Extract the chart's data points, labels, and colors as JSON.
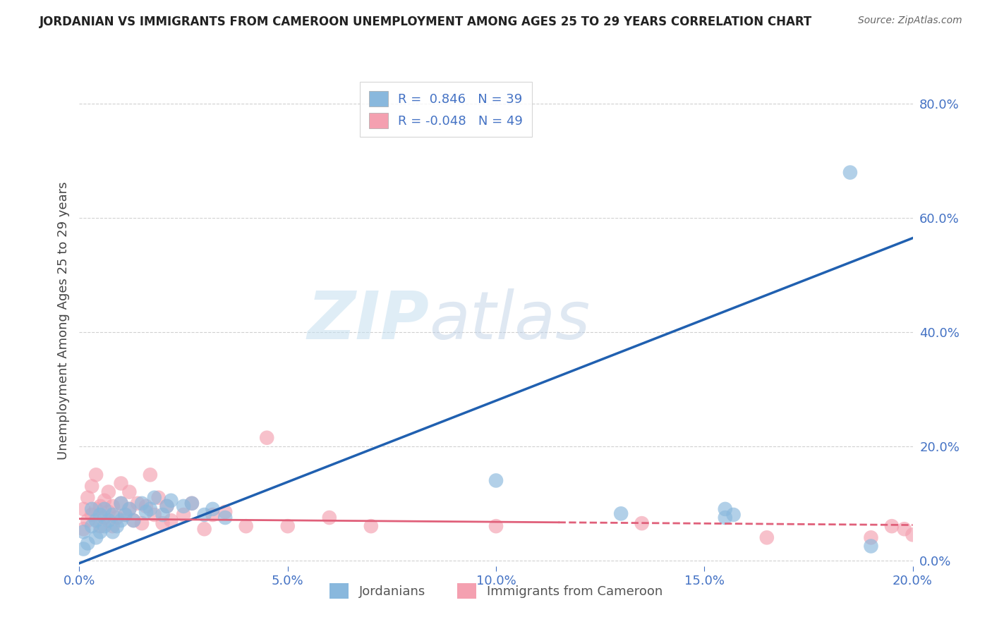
{
  "title": "JORDANIAN VS IMMIGRANTS FROM CAMEROON UNEMPLOYMENT AMONG AGES 25 TO 29 YEARS CORRELATION CHART",
  "source": "Source: ZipAtlas.com",
  "ylabel_label": "Unemployment Among Ages 25 to 29 years",
  "xmin": 0.0,
  "xmax": 0.2,
  "ymin": -0.01,
  "ymax": 0.85,
  "jordanian_color": "#89b8dd",
  "cameroon_color": "#f4a0b0",
  "jordanian_line_color": "#2060b0",
  "cameroon_line_color": "#e0607a",
  "R_jordanian": 0.846,
  "N_jordanian": 39,
  "R_cameroon": -0.048,
  "N_cameroon": 49,
  "legend_label_jordanian": "Jordanians",
  "legend_label_cameroon": "Immigrants from Cameroon",
  "watermark_zip": "ZIP",
  "watermark_atlas": "atlas",
  "background_color": "#ffffff",
  "grid_color": "#cccccc",
  "jord_line_x0": 0.0,
  "jord_line_y0": -0.005,
  "jord_line_x1": 0.2,
  "jord_line_y1": 0.565,
  "cam_line_x0": 0.0,
  "cam_line_y0": 0.073,
  "cam_line_x1": 0.2,
  "cam_line_y1": 0.062,
  "cam_line_solid_end": 0.115,
  "jordanian_x": [
    0.001,
    0.001,
    0.002,
    0.003,
    0.003,
    0.004,
    0.004,
    0.005,
    0.005,
    0.006,
    0.006,
    0.007,
    0.008,
    0.008,
    0.009,
    0.01,
    0.01,
    0.011,
    0.012,
    0.013,
    0.015,
    0.016,
    0.017,
    0.018,
    0.02,
    0.021,
    0.022,
    0.025,
    0.027,
    0.03,
    0.032,
    0.035,
    0.1,
    0.13,
    0.155,
    0.155,
    0.157,
    0.185,
    0.19
  ],
  "jordanian_y": [
    0.02,
    0.05,
    0.03,
    0.06,
    0.09,
    0.04,
    0.07,
    0.05,
    0.08,
    0.06,
    0.09,
    0.07,
    0.05,
    0.08,
    0.06,
    0.07,
    0.1,
    0.08,
    0.09,
    0.07,
    0.1,
    0.085,
    0.09,
    0.11,
    0.08,
    0.095,
    0.105,
    0.095,
    0.1,
    0.08,
    0.09,
    0.075,
    0.14,
    0.082,
    0.075,
    0.09,
    0.08,
    0.68,
    0.025
  ],
  "cameroon_x": [
    0.001,
    0.001,
    0.002,
    0.002,
    0.003,
    0.003,
    0.004,
    0.004,
    0.005,
    0.005,
    0.006,
    0.006,
    0.007,
    0.007,
    0.008,
    0.008,
    0.009,
    0.01,
    0.01,
    0.011,
    0.012,
    0.012,
    0.013,
    0.014,
    0.015,
    0.016,
    0.017,
    0.018,
    0.019,
    0.02,
    0.021,
    0.022,
    0.025,
    0.027,
    0.03,
    0.032,
    0.035,
    0.04,
    0.045,
    0.05,
    0.06,
    0.07,
    0.1,
    0.135,
    0.165,
    0.19,
    0.195,
    0.198,
    0.2
  ],
  "cameroon_y": [
    0.055,
    0.09,
    0.07,
    0.11,
    0.08,
    0.13,
    0.09,
    0.15,
    0.06,
    0.095,
    0.075,
    0.105,
    0.085,
    0.12,
    0.06,
    0.095,
    0.075,
    0.1,
    0.135,
    0.08,
    0.09,
    0.12,
    0.07,
    0.1,
    0.065,
    0.095,
    0.15,
    0.08,
    0.11,
    0.065,
    0.095,
    0.07,
    0.08,
    0.1,
    0.055,
    0.08,
    0.085,
    0.06,
    0.215,
    0.06,
    0.075,
    0.06,
    0.06,
    0.065,
    0.04,
    0.04,
    0.06,
    0.055,
    0.045
  ]
}
